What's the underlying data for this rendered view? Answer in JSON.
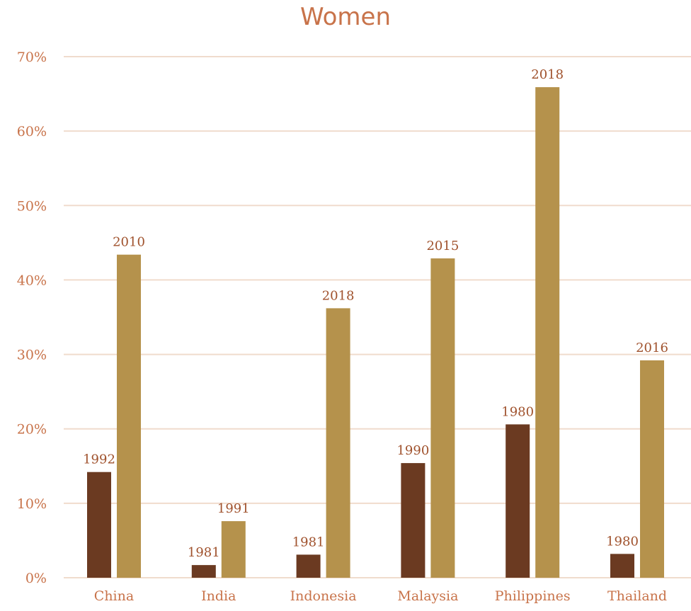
{
  "chart_data": {
    "type": "bar",
    "title": "Women",
    "categories": [
      "China",
      "India",
      "Indonesia",
      "Malaysia",
      "Philippines",
      "Thailand"
    ],
    "y_ticks": [
      "0%",
      "10%",
      "20%",
      "30%",
      "40%",
      "50%",
      "60%",
      "70%"
    ],
    "ylim": [
      0,
      70
    ],
    "grid": true,
    "series": [
      {
        "color": "#6b3a21",
        "values": [
          14.2,
          1.7,
          3.1,
          15.4,
          20.6,
          3.2
        ],
        "labels": [
          "1992",
          "1981",
          "1981",
          "1990",
          "1980",
          "1980"
        ]
      },
      {
        "color": "#b5924c",
        "values": [
          43.4,
          7.6,
          36.2,
          42.9,
          65.9,
          29.2
        ],
        "labels": [
          "2010",
          "1991",
          "2018",
          "2015",
          "2018",
          "2016"
        ]
      }
    ]
  },
  "colors": {
    "title": "#c8734a",
    "tick": "#c8734a",
    "grid": "#f0dccd",
    "data_label": "#a0522d"
  }
}
